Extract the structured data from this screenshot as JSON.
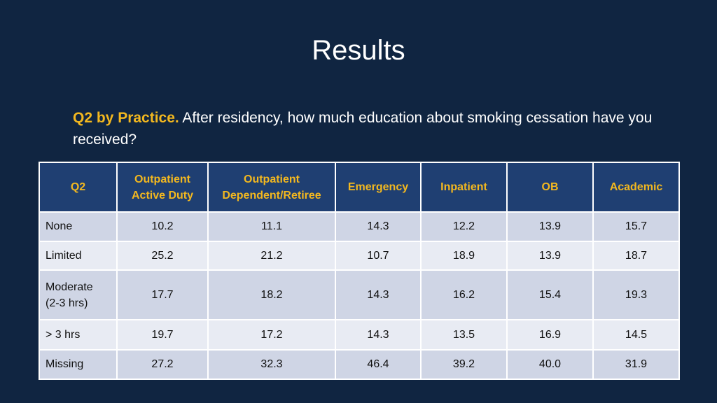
{
  "slide": {
    "title": "Results",
    "question_lead": "Q2 by Practice.",
    "question_text": " After residency, how much education about smoking cessation have you received?"
  },
  "table": {
    "headers": [
      {
        "line1": "Q2",
        "line2": ""
      },
      {
        "line1": "Outpatient",
        "line2": "Active Duty"
      },
      {
        "line1": "Outpatient",
        "line2": "Dependent/Retiree"
      },
      {
        "line1": "Emergency",
        "line2": ""
      },
      {
        "line1": "Inpatient",
        "line2": ""
      },
      {
        "line1": "OB",
        "line2": ""
      },
      {
        "line1": "Academic",
        "line2": ""
      }
    ],
    "rows": [
      {
        "label1": "None",
        "label2": "",
        "values": [
          "10.2",
          "11.1",
          "14.3",
          "12.2",
          "13.9",
          "15.7"
        ]
      },
      {
        "label1": "Limited",
        "label2": "",
        "values": [
          "25.2",
          "21.2",
          "10.7",
          "18.9",
          "13.9",
          "18.7"
        ]
      },
      {
        "label1": "Moderate",
        "label2": "(2-3 hrs)",
        "values": [
          "17.7",
          "18.2",
          "14.3",
          "16.2",
          "15.4",
          "19.3"
        ]
      },
      {
        "label1": "> 3 hrs",
        "label2": "",
        "values": [
          "19.7",
          "17.2",
          "14.3",
          "13.5",
          "16.9",
          "14.5"
        ]
      },
      {
        "label1": "Missing",
        "label2": "",
        "values": [
          "27.2",
          "32.3",
          "46.4",
          "39.2",
          "40.0",
          "31.9"
        ]
      }
    ]
  },
  "colors": {
    "background": "#102541",
    "header_fill": "#1f3f72",
    "accent": "#f3b81f",
    "row_odd": "#cfd5e5",
    "row_even": "#e8ebf3"
  }
}
